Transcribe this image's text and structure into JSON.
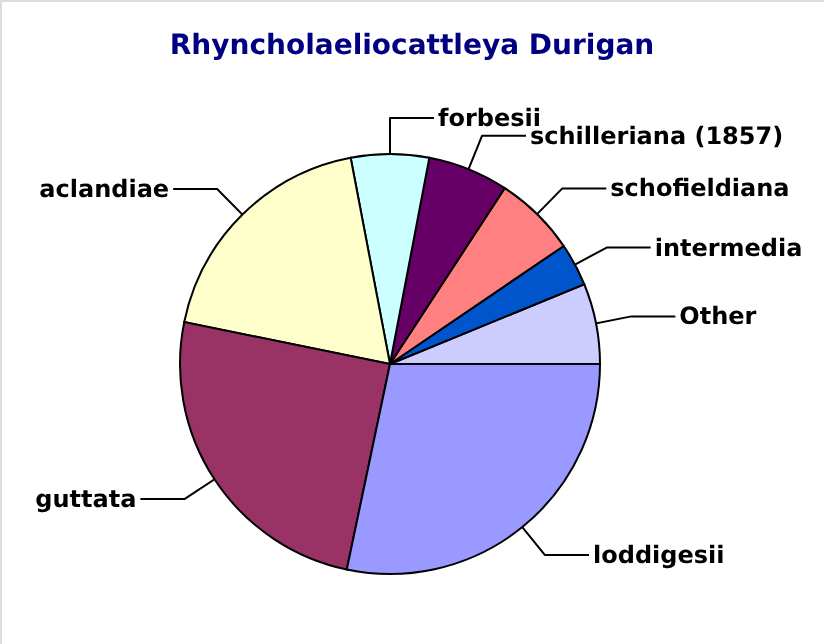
{
  "chart_data": {
    "type": "pie",
    "title": "Rhyncholaeliocattleya Durigan",
    "categories": [
      "Other",
      "intermedia",
      "schofieldiana",
      "schilleriana (1857)",
      "forbesii",
      "aclandiae",
      "guttata",
      "loddigesii"
    ],
    "values": [
      6.2,
      3.3,
      6.3,
      6.2,
      6.0,
      18.8,
      24.9,
      28.3
    ],
    "colors": [
      "#ccccff",
      "#0055cc",
      "#ff8080",
      "#660066",
      "#ccffff",
      "#ffffcc",
      "#993366",
      "#9999ff"
    ]
  }
}
